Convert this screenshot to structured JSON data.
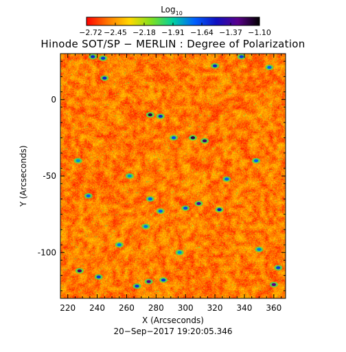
{
  "chart_data": {
    "type": "heatmap",
    "title": "Hinode SOT/SP − MERLIN : Degree of Polarization",
    "xlabel": "X (Arcseconds)",
    "ylabel": "Y (Arcseconds)",
    "date_label": "20−Sep−2017 19:20:05.346",
    "xlim": [
      215,
      368
    ],
    "ylim": [
      -130,
      30
    ],
    "x_ticks": [
      220,
      240,
      260,
      280,
      300,
      320,
      340,
      360
    ],
    "y_ticks": [
      0,
      -50,
      -100
    ],
    "colorbar": {
      "label": "Log10",
      "label_base": "Log",
      "label_sub": "10",
      "range": [
        -2.72,
        -1.1
      ],
      "ticks": [
        "−2.72",
        "−2.45",
        "−2.18",
        "−1.91",
        "−1.64",
        "−1.37",
        "−1.10"
      ],
      "colors": [
        "#ff0000",
        "#ff7a00",
        "#ffd800",
        "#7fe020",
        "#00d0a0",
        "#0060ff",
        "#1010c0",
        "#5a008a",
        "#000000"
      ]
    },
    "background_range": [
      -2.72,
      -2.3
    ],
    "high_polarization_patches": [
      {
        "x": 237,
        "y": 28,
        "value": -1.55
      },
      {
        "x": 245,
        "y": 14,
        "value": -1.55
      },
      {
        "x": 244,
        "y": 27,
        "value": -1.6
      },
      {
        "x": 276,
        "y": -10,
        "value": -1.2
      },
      {
        "x": 283,
        "y": -11,
        "value": -1.55
      },
      {
        "x": 292,
        "y": -25,
        "value": -1.65
      },
      {
        "x": 305,
        "y": -25,
        "value": -1.2
      },
      {
        "x": 313,
        "y": -27,
        "value": -1.25
      },
      {
        "x": 320,
        "y": 22,
        "value": -1.55
      },
      {
        "x": 338,
        "y": 28,
        "value": -1.6
      },
      {
        "x": 357,
        "y": 21,
        "value": -1.7
      },
      {
        "x": 348,
        "y": -40,
        "value": -1.7
      },
      {
        "x": 328,
        "y": -52,
        "value": -1.7
      },
      {
        "x": 309,
        "y": -68,
        "value": -1.35
      },
      {
        "x": 323,
        "y": -72,
        "value": -1.5
      },
      {
        "x": 300,
        "y": -71,
        "value": -1.65
      },
      {
        "x": 276,
        "y": -65,
        "value": -1.7
      },
      {
        "x": 283,
        "y": -73,
        "value": -1.7
      },
      {
        "x": 234,
        "y": -63,
        "value": -1.7
      },
      {
        "x": 228,
        "y": -112,
        "value": -1.25
      },
      {
        "x": 241,
        "y": -116,
        "value": -1.6
      },
      {
        "x": 267,
        "y": -122,
        "value": -1.6
      },
      {
        "x": 275,
        "y": -119,
        "value": -1.3
      },
      {
        "x": 285,
        "y": -118,
        "value": -1.6
      },
      {
        "x": 363,
        "y": -110,
        "value": -1.6
      },
      {
        "x": 360,
        "y": -121,
        "value": -1.3
      },
      {
        "x": 350,
        "y": -98,
        "value": -1.75
      },
      {
        "x": 255,
        "y": -95,
        "value": -1.75
      },
      {
        "x": 273,
        "y": -83,
        "value": -1.75
      },
      {
        "x": 262,
        "y": -50,
        "value": -1.8
      },
      {
        "x": 227,
        "y": -40,
        "value": -1.8
      },
      {
        "x": 296,
        "y": -100,
        "value": -1.8
      }
    ]
  }
}
